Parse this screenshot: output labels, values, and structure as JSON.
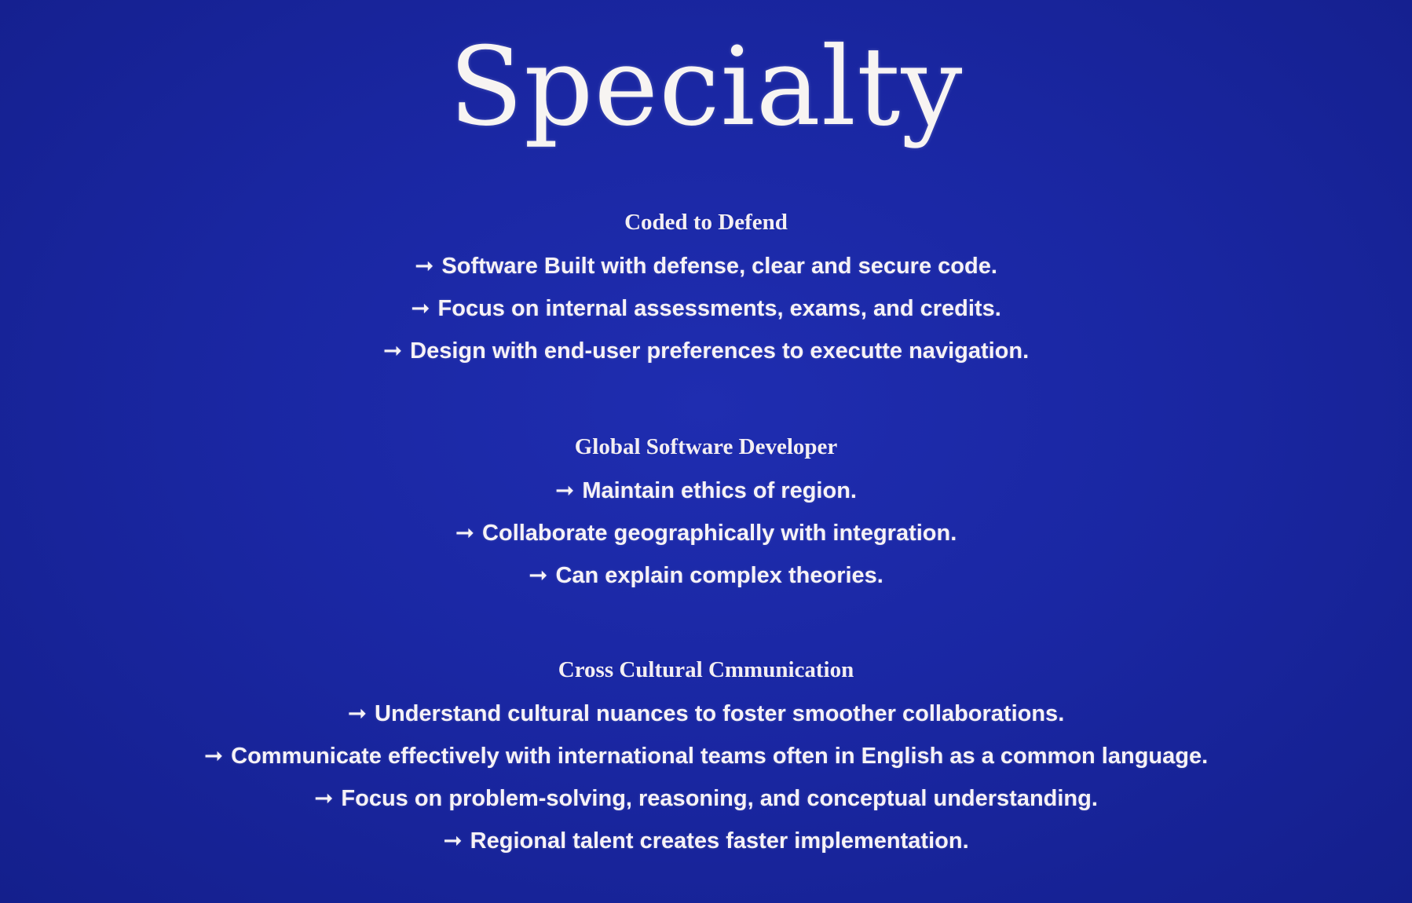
{
  "title": "Specialty",
  "arrow_glyph": "➞",
  "sections": [
    {
      "heading": "Coded to Defend",
      "items": [
        "Software Built with defense, clear and secure code.",
        "Focus on internal assessments, exams, and credits.",
        "Design with end-user preferences to executte navigation."
      ]
    },
    {
      "heading": "Global Software Developer",
      "items": [
        "Maintain ethics of region.",
        "Collaborate geographically with integration.",
        "Can explain complex theories."
      ]
    },
    {
      "heading": "Cross Cultural Cmmunication",
      "items": [
        "Understand cultural nuances to foster smoother collaborations.",
        "Communicate effectively with international teams often in English as a common language.",
        "Focus on problem-solving, reasoning, and conceptual understanding.",
        "Regional talent creates faster implementation."
      ]
    }
  ],
  "colors": {
    "background": "#1a27a3",
    "text": "#f4f1f6"
  }
}
